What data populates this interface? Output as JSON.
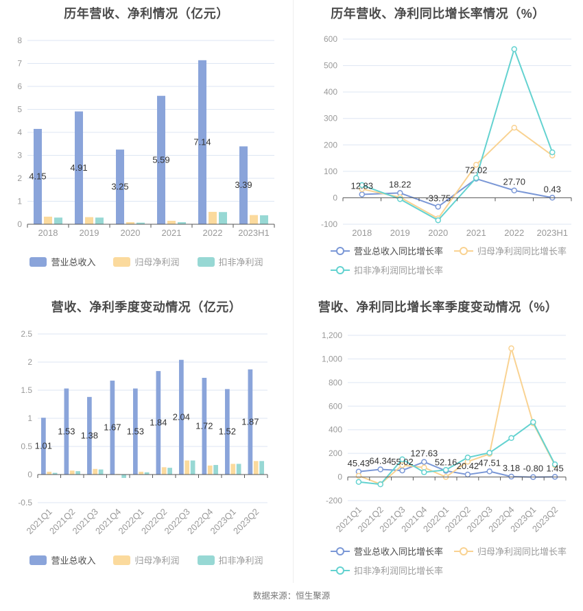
{
  "page": {
    "footer": {
      "text": "数据来源：恒生聚源"
    },
    "divider_color": "#eeeeee"
  },
  "palette": {
    "bar_blue": "#8AA4DA",
    "bar_yellow": "#FBDA9D",
    "bar_teal": "#97D8D4",
    "line_blue": "#7A97D6",
    "line_yellow": "#F9D291",
    "line_teal": "#63D2D0",
    "grid_color": "#DDE6F3",
    "axis_line_color": "#555555",
    "axis_label_color": "#999999",
    "value_label_color": "#333333",
    "title_color": "#4A4A4A",
    "legend_text_primary": "#4A4A4A",
    "legend_text_secondary": "#9B9B9B"
  },
  "chart_data": [
    {
      "id": "annual-revenue-profit",
      "type": "bar",
      "title": "历年营收、净利情况（亿元）",
      "categories": [
        "2018",
        "2019",
        "2020",
        "2021",
        "2022",
        "2023H1"
      ],
      "series": [
        {
          "name": "营业总收入",
          "color_key": "bar_blue",
          "labeled": true,
          "values": [
            4.15,
            4.91,
            3.25,
            5.59,
            7.14,
            3.39
          ]
        },
        {
          "name": "归母净利润",
          "color_key": "bar_yellow",
          "labeled": false,
          "values": [
            0.33,
            0.31,
            0.09,
            0.15,
            0.54,
            0.4
          ]
        },
        {
          "name": "扣非净利润",
          "color_key": "bar_teal",
          "labeled": false,
          "values": [
            0.29,
            0.29,
            0.07,
            0.09,
            0.53,
            0.39
          ]
        }
      ],
      "ylim": [
        0,
        8
      ],
      "ytick": 1,
      "grid": true,
      "rotate_xlabels": false,
      "thousands": false,
      "legend_position": "bottom-center"
    },
    {
      "id": "annual-growth-rate",
      "type": "line",
      "title": "历年营收、净利同比增长率情况（%）",
      "categories": [
        "2018",
        "2019",
        "2020",
        "2021",
        "2022",
        "2023H1"
      ],
      "series": [
        {
          "name": "营业总收入同比增长率",
          "color_key": "line_blue",
          "labeled": true,
          "values": [
            12.83,
            18.22,
            -33.75,
            72.02,
            27.7,
            0.43
          ]
        },
        {
          "name": "归母净利润同比增长率",
          "color_key": "line_yellow",
          "labeled": false,
          "values": [
            33,
            2,
            -78,
            125,
            265,
            160
          ]
        },
        {
          "name": "扣非净利润同比增长率",
          "color_key": "line_teal",
          "labeled": false,
          "values": [
            48,
            -5,
            -85,
            75,
            562,
            172
          ]
        }
      ],
      "ylim": [
        -100,
        600
      ],
      "ytick": 100,
      "grid": true,
      "rotate_xlabels": false,
      "thousands": false,
      "legend_position": "bottom-left-wrap"
    },
    {
      "id": "quarterly-revenue-profit",
      "type": "bar",
      "title": "营收、净利季度变动情况（亿元）",
      "categories": [
        "2021Q1",
        "2021Q2",
        "2021Q3",
        "2021Q4",
        "2022Q1",
        "2022Q2",
        "2022Q3",
        "2022Q4",
        "2023Q1",
        "2023Q2"
      ],
      "series": [
        {
          "name": "营业总收入",
          "color_key": "bar_blue",
          "labeled": true,
          "values": [
            1.01,
            1.53,
            1.38,
            1.67,
            1.53,
            1.84,
            2.04,
            1.72,
            1.52,
            1.87
          ]
        },
        {
          "name": "归母净利润",
          "color_key": "bar_yellow",
          "labeled": false,
          "values": [
            0.05,
            0.07,
            0.1,
            0.01,
            0.05,
            0.13,
            0.25,
            0.16,
            0.19,
            0.24
          ]
        },
        {
          "name": "扣非净利润",
          "color_key": "bar_teal",
          "labeled": false,
          "values": [
            0.03,
            0.06,
            0.09,
            -0.06,
            0.04,
            0.12,
            0.25,
            0.17,
            0.19,
            0.24
          ]
        }
      ],
      "ylim": [
        -0.5,
        2.5
      ],
      "ytick": 0.5,
      "grid": true,
      "rotate_xlabels": true,
      "thousands": false,
      "legend_position": "bottom-center"
    },
    {
      "id": "quarterly-growth-rate",
      "type": "line",
      "title": "营收、净利同比增长率季度变动情况（%）",
      "categories": [
        "2021Q1",
        "2021Q2",
        "2021Q3",
        "2021Q4",
        "2022Q1",
        "2022Q2",
        "2022Q3",
        "2022Q4",
        "2023Q1",
        "2023Q2"
      ],
      "series": [
        {
          "name": "营业总收入同比增长率",
          "color_key": "line_blue",
          "labeled": true,
          "values": [
            45.43,
            64.34,
            55.02,
            127.63,
            52.16,
            20.42,
            47.51,
            3.18,
            -0.8,
            1.45
          ]
        },
        {
          "name": "归母净利润同比增长率",
          "color_key": "line_yellow",
          "labeled": false,
          "values": [
            10,
            -60,
            100,
            80,
            0,
            130,
            195,
            1090,
            455,
            100
          ]
        },
        {
          "name": "扣非净利润同比增长率",
          "color_key": "line_teal",
          "labeled": false,
          "values": [
            -42,
            -62,
            150,
            40,
            60,
            165,
            205,
            330,
            465,
            107
          ]
        }
      ],
      "ylim": [
        -200,
        1200
      ],
      "ytick": 200,
      "grid": true,
      "rotate_xlabels": true,
      "thousands": true,
      "legend_position": "bottom-left-wrap"
    }
  ]
}
